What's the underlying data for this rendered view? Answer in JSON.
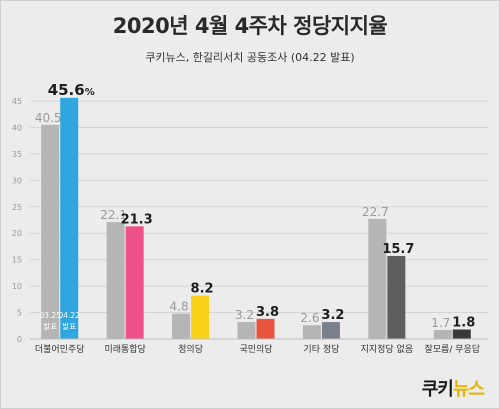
{
  "title": "2020년 4월 4주차 정당지지율",
  "subtitle": "쿠키뉴스, 한길리서치 공동조사 (04.22 발표)",
  "logo": {
    "part1": "쿠키",
    "part2": "뉴스",
    "color1": "#1a1a1a",
    "color2": "#e8b400"
  },
  "chart_data": {
    "type": "bar",
    "ylim": [
      0,
      45
    ],
    "yticks": [
      0,
      5,
      10,
      15,
      20,
      25,
      30,
      35,
      40,
      45
    ],
    "grid": true,
    "categories": [
      "더불어민주당",
      "미래통합당",
      "정의당",
      "국민의당",
      "기타 정당",
      "지지정당 없음",
      "잘모름/ 무응답"
    ],
    "series": [
      {
        "name": "03.25 발표",
        "values": [
          40.5,
          22.1,
          4.8,
          3.2,
          2.6,
          22.7,
          1.7
        ],
        "color": "#b5b5b5"
      },
      {
        "name": "04.22 발표",
        "values": [
          45.6,
          21.3,
          8.2,
          3.8,
          3.2,
          15.7,
          1.8
        ],
        "colors": [
          "#2fa6de",
          "#f0508a",
          "#f9d21a",
          "#e8553e",
          "#7a7f8c",
          "#5e5e5e",
          "#3a3a3a"
        ]
      }
    ],
    "in_bar_labels": [
      {
        "line1": "03.25",
        "line2": "발표"
      },
      {
        "line1": "04.22",
        "line2": "발표"
      }
    ]
  }
}
